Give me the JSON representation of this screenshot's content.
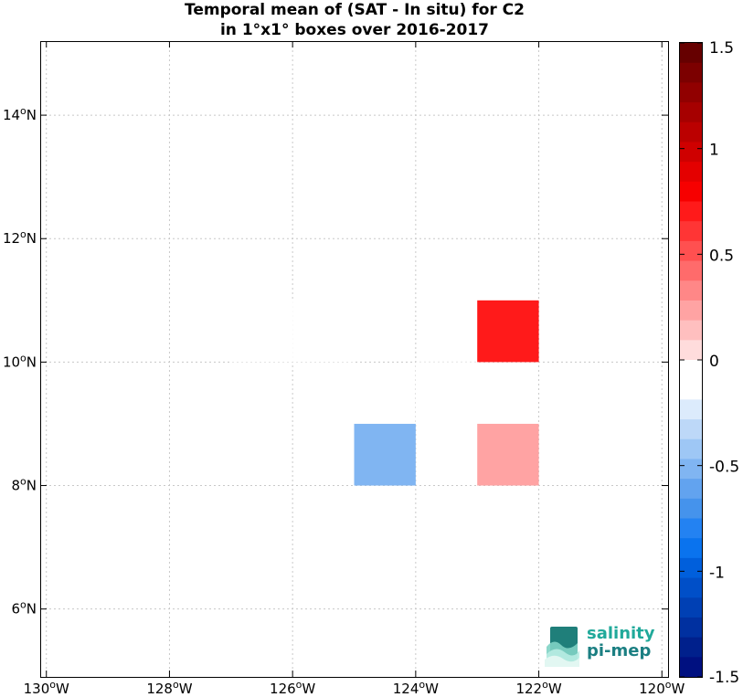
{
  "title": {
    "line1": "Temporal mean of (SAT - In situ) for C2",
    "line2": "in 1°x1° boxes over 2016-2017"
  },
  "logo": {
    "line1": "salinity",
    "line2": "pi-mep"
  },
  "chart_data": {
    "type": "heatmap",
    "title": "Temporal mean of (SAT - In situ) for C2 in 1°x1° boxes over 2016-2017",
    "xlim": [
      -130.1,
      -119.9
    ],
    "ylim": [
      4.9,
      15.2
    ],
    "x_ticks": [
      -130,
      -128,
      -126,
      -124,
      -122,
      -120
    ],
    "x_tick_labels": [
      "130°W",
      "128°W",
      "126°W",
      "124°W",
      "122°W",
      "120°W"
    ],
    "y_ticks": [
      6,
      8,
      10,
      12,
      14
    ],
    "y_tick_labels": [
      "6°N",
      "8°N",
      "10°N",
      "12°N",
      "14°N"
    ],
    "grid": true,
    "cells": [
      {
        "lon_min": -127,
        "lon_max": -126,
        "lat_min": 10,
        "lat_max": 11,
        "value": -0.1
      },
      {
        "lon_min": -126,
        "lon_max": -125,
        "lat_min": 10,
        "lat_max": 11,
        "value": -0.1
      },
      {
        "lon_min": -123,
        "lon_max": -122,
        "lat_min": 10,
        "lat_max": 11,
        "value": 0.75
      },
      {
        "lon_min": -124,
        "lon_max": -123,
        "lat_min": 9,
        "lat_max": 10,
        "value": -0.1
      },
      {
        "lon_min": -125,
        "lon_max": -124,
        "lat_min": 8,
        "lat_max": 9,
        "value": -0.5
      },
      {
        "lon_min": -123,
        "lon_max": -122,
        "lat_min": 8,
        "lat_max": 9,
        "value": 0.25
      }
    ],
    "colorbar": {
      "min": -1.5,
      "max": 1.5,
      "levels": 32,
      "ticks": [
        1.5,
        1,
        0.5,
        0,
        -0.5,
        -1,
        -1.5
      ],
      "tick_labels": [
        "1.5",
        "1",
        "0.5",
        "0",
        "-0.5",
        "-1",
        "-1.5"
      ],
      "colors_top_to_bottom": [
        "#660000",
        "#7c0000",
        "#910000",
        "#a60000",
        "#bb0000",
        "#cf0000",
        "#e40000",
        "#f70000",
        "#ff1a1a",
        "#ff3535",
        "#ff5050",
        "#ff6b6b",
        "#ff8787",
        "#ffa3a3",
        "#ffbfbf",
        "#ffdcdc",
        "#ffffff",
        "#ffffff",
        "#dcebfc",
        "#bdd8f8",
        "#9ec7f5",
        "#80b5f2",
        "#62a3ef",
        "#4593ec",
        "#2382f2",
        "#0a73ee",
        "#005fdc",
        "#004fc8",
        "#0040b4",
        "#0030a0",
        "#00208c",
        "#001080"
      ]
    }
  }
}
